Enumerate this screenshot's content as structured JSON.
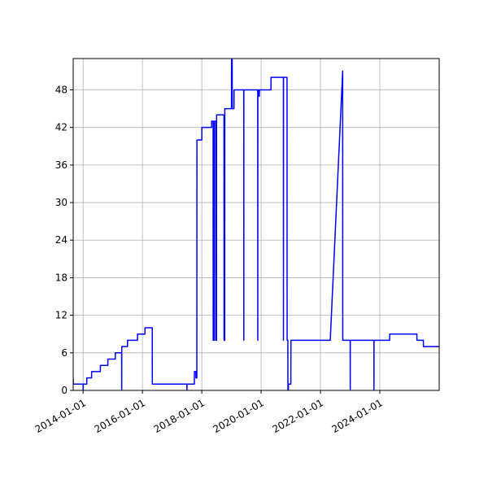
{
  "chart_data": {
    "type": "line",
    "title": "",
    "xlabel": "",
    "ylabel": "",
    "x_ticks": [
      "2014-01-01",
      "2016-01-01",
      "2018-01-01",
      "2020-01-01",
      "2022-01-01",
      "2024-01-01"
    ],
    "y_ticks": [
      0,
      6,
      12,
      18,
      24,
      30,
      36,
      42,
      48
    ],
    "xlim": [
      "2013-09-01",
      "2026-01-01"
    ],
    "ylim": [
      0,
      53
    ],
    "grid": true,
    "series": [
      {
        "color": "#0000ff",
        "points": [
          [
            "2013-09-01",
            2
          ],
          [
            "2013-09-02",
            1
          ],
          [
            "2014-01-01",
            1
          ],
          [
            "2014-01-02",
            0
          ],
          [
            "2014-01-03",
            1
          ],
          [
            "2014-02-15",
            1
          ],
          [
            "2014-02-16",
            2
          ],
          [
            "2014-04-15",
            2
          ],
          [
            "2014-04-16",
            3
          ],
          [
            "2014-08-01",
            3
          ],
          [
            "2014-08-02",
            4
          ],
          [
            "2014-11-01",
            4
          ],
          [
            "2014-11-02",
            5
          ],
          [
            "2015-02-01",
            5
          ],
          [
            "2015-02-02",
            6
          ],
          [
            "2015-04-20",
            6
          ],
          [
            "2015-04-21",
            0
          ],
          [
            "2015-04-22",
            7
          ],
          [
            "2015-07-01",
            7
          ],
          [
            "2015-07-02",
            8
          ],
          [
            "2015-11-01",
            8
          ],
          [
            "2015-11-02",
            9
          ],
          [
            "2016-02-01",
            9
          ],
          [
            "2016-02-02",
            10
          ],
          [
            "2016-05-01",
            10
          ],
          [
            "2016-05-02",
            1
          ],
          [
            "2017-07-01",
            1
          ],
          [
            "2017-07-02",
            0
          ],
          [
            "2017-07-03",
            1
          ],
          [
            "2017-10-01",
            1
          ],
          [
            "2017-10-02",
            3
          ],
          [
            "2017-10-20",
            3
          ],
          [
            "2017-10-21",
            2
          ],
          [
            "2017-11-01",
            2
          ],
          [
            "2017-11-02",
            40
          ],
          [
            "2018-01-01",
            40
          ],
          [
            "2018-01-02",
            42
          ],
          [
            "2018-05-01",
            42
          ],
          [
            "2018-05-02",
            43
          ],
          [
            "2018-05-20",
            43
          ],
          [
            "2018-05-21",
            8
          ],
          [
            "2018-06-01",
            8
          ],
          [
            "2018-06-02",
            43
          ],
          [
            "2018-06-20",
            43
          ],
          [
            "2018-06-21",
            8
          ],
          [
            "2018-07-01",
            8
          ],
          [
            "2018-07-02",
            44
          ],
          [
            "2018-10-01",
            44
          ],
          [
            "2018-10-02",
            8
          ],
          [
            "2018-10-10",
            8
          ],
          [
            "2018-10-11",
            45
          ],
          [
            "2019-01-01",
            45
          ],
          [
            "2019-01-02",
            53
          ],
          [
            "2019-01-10",
            53
          ],
          [
            "2019-01-11",
            45
          ],
          [
            "2019-02-01",
            45
          ],
          [
            "2019-02-02",
            48
          ],
          [
            "2019-06-01",
            48
          ],
          [
            "2019-06-02",
            8
          ],
          [
            "2019-06-03",
            48
          ],
          [
            "2019-11-20",
            48
          ],
          [
            "2019-11-21",
            8
          ],
          [
            "2019-11-22",
            48
          ],
          [
            "2019-12-01",
            48
          ],
          [
            "2019-12-02",
            47
          ],
          [
            "2019-12-10",
            47
          ],
          [
            "2019-12-11",
            48
          ],
          [
            "2020-01-01",
            48
          ],
          [
            "2020-01-02",
            48
          ],
          [
            "2020-05-01",
            48
          ],
          [
            "2020-05-02",
            50
          ],
          [
            "2020-10-01",
            50
          ],
          [
            "2020-10-02",
            8
          ],
          [
            "2020-10-03",
            50
          ],
          [
            "2020-11-15",
            50
          ],
          [
            "2020-11-16",
            8
          ],
          [
            "2020-11-25",
            8
          ],
          [
            "2020-11-26",
            0
          ],
          [
            "2020-12-01",
            0
          ],
          [
            "2020-12-02",
            1
          ],
          [
            "2021-01-01",
            1
          ],
          [
            "2021-01-02",
            8
          ],
          [
            "2022-05-01",
            8
          ],
          [
            "2022-10-01",
            51
          ],
          [
            "2022-10-02",
            8
          ],
          [
            "2023-01-01",
            8
          ],
          [
            "2023-01-02",
            0
          ],
          [
            "2023-01-03",
            8
          ],
          [
            "2023-10-20",
            8
          ],
          [
            "2023-10-21",
            0
          ],
          [
            "2023-10-22",
            8
          ],
          [
            "2024-05-01",
            8
          ],
          [
            "2024-05-02",
            9
          ],
          [
            "2025-04-01",
            9
          ],
          [
            "2025-04-02",
            8
          ],
          [
            "2025-06-20",
            8
          ],
          [
            "2025-06-21",
            7
          ],
          [
            "2026-01-01",
            7
          ]
        ]
      }
    ]
  }
}
